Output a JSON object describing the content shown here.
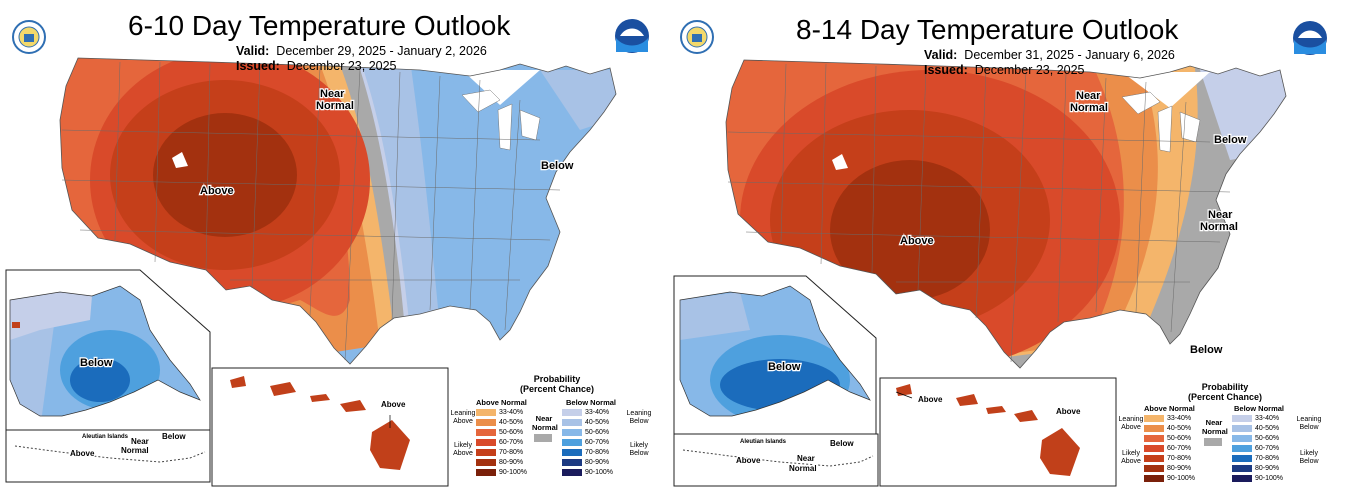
{
  "colors": {
    "above": [
      "#f4b56b",
      "#eb8e4a",
      "#e5663c",
      "#d94a2a",
      "#c53f1a",
      "#a3310f",
      "#7a200a"
    ],
    "below": [
      "#c5cfe9",
      "#a8c2e6",
      "#87b8e8",
      "#4ea0de",
      "#1b6cbc",
      "#1c3a82",
      "#1a1b5c"
    ],
    "near": "#a9a9a9",
    "land": "#ffffff",
    "hawaii": "#c1401a"
  },
  "panel1": {
    "title": "6-10 Day Temperature Outlook",
    "valid_label": "Valid:",
    "valid_value": "December 29, 2025 - January 2, 2026",
    "issued_label": "Issued:",
    "issued_value": "December 23, 2025",
    "labels": {
      "near_top_1": "Near",
      "near_top_2": "Normal",
      "below_east": "Below",
      "above_main": "Above",
      "below_alaska": "Below",
      "aleutian": "Aleutian Islands",
      "aleutian_above": "Above",
      "aleutian_near_1": "Near",
      "aleutian_near_2": "Normal",
      "aleutian_below": "Below",
      "hawaii_above": "Above"
    }
  },
  "panel2": {
    "title": "8-14 Day Temperature Outlook",
    "valid_label": "Valid:",
    "valid_value": "December 31, 2025 - January 6, 2026",
    "issued_label": "Issued:",
    "issued_value": "December 23, 2025",
    "labels": {
      "near_top_1": "Near",
      "near_top_2": "Normal",
      "below_ne": "Below",
      "near_east_1": "Near",
      "near_east_2": "Normal",
      "above_main": "Above",
      "below_fl": "Below",
      "below_alaska": "Below",
      "aleutian": "Aleutian Islands",
      "aleutian_above": "Above",
      "aleutian_near_1": "Near",
      "aleutian_near_2": "Normal",
      "aleutian_below": "Below",
      "hawaii_above_left": "Above",
      "hawaii_above_right": "Above"
    }
  },
  "legend": {
    "title_1": "Probability",
    "title_2": "(Percent Chance)",
    "above_header": "Above Normal",
    "below_header": "Below Normal",
    "near_1": "Near",
    "near_2": "Normal",
    "leaning_above_1": "Leaning",
    "leaning_above_2": "Above",
    "likely_above_1": "Likely",
    "likely_above_2": "Above",
    "leaning_below_1": "Leaning",
    "leaning_below_2": "Below",
    "likely_below_1": "Likely",
    "likely_below_2": "Below",
    "ranges": [
      "33-40%",
      "40-50%",
      "50-60%",
      "60-70%",
      "70-80%",
      "80-90%",
      "90-100%"
    ]
  }
}
